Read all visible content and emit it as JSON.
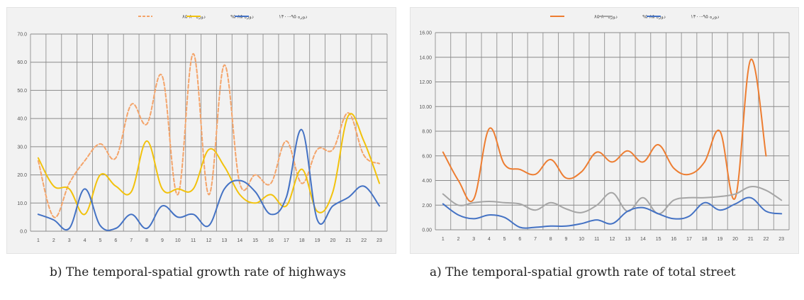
{
  "captions": {
    "b": "b) The temporal-spatial growth rate of highways",
    "a": "a) The temporal-spatial growth rate of total street"
  },
  "chart_data": [
    {
      "type": "line",
      "panel": "b",
      "x": [
        1,
        2,
        3,
        4,
        5,
        6,
        7,
        8,
        9,
        10,
        11,
        12,
        13,
        14,
        15,
        16,
        17,
        18,
        19,
        20,
        21,
        22,
        23
      ],
      "ylim": [
        0,
        70
      ],
      "yticks": [
        "0.0",
        "10.0",
        "20.0",
        "30.0",
        "40.0",
        "50.0",
        "60.0",
        "70.0"
      ],
      "grid": true,
      "legend_position": "top-center",
      "series": [
        {
          "name": "دوره ۸۰-۸۵",
          "color": "#f4a46a",
          "dashed": true,
          "values": [
            25,
            5,
            17,
            25,
            31,
            26,
            45,
            38,
            55,
            13,
            63,
            13,
            59,
            17,
            20,
            17,
            32,
            17,
            29,
            29,
            42,
            27,
            24
          ]
        },
        {
          "name": "دوره ۸۵-۹۵",
          "color": "#f2c20c",
          "dashed": false,
          "values": [
            26,
            16,
            15,
            6,
            20,
            16,
            14,
            32,
            15,
            15,
            15,
            29,
            23,
            13,
            10,
            13,
            9,
            22,
            7,
            14,
            41,
            32,
            17
          ]
        },
        {
          "name": "دوره ۹۵-۱۴۰۰",
          "color": "#4472c4",
          "dashed": false,
          "values": [
            6,
            4,
            1,
            15,
            2,
            1,
            6,
            1,
            9,
            5,
            6,
            2,
            15,
            18,
            14,
            6,
            12,
            36,
            4,
            9,
            12,
            16,
            9
          ]
        }
      ]
    },
    {
      "type": "line",
      "panel": "a",
      "x": [
        1,
        2,
        3,
        4,
        5,
        6,
        7,
        8,
        9,
        10,
        11,
        12,
        13,
        14,
        15,
        16,
        17,
        18,
        19,
        20,
        21,
        22,
        23
      ],
      "ylim": [
        0,
        16
      ],
      "yticks": [
        "0.00",
        "2.00",
        "4.00",
        "6.00",
        "8.00",
        "10.00",
        "12.00",
        "14.00",
        "16.00"
      ],
      "grid": true,
      "legend_position": "top-center",
      "series": [
        {
          "name": "دوره ۸۰-۸۵",
          "color": "#ed7d31",
          "dashed": false,
          "values": [
            6.3,
            4.0,
            2.5,
            8.2,
            5.3,
            4.9,
            4.5,
            5.7,
            4.2,
            4.7,
            6.3,
            5.5,
            6.4,
            5.5,
            6.9,
            5.0,
            4.5,
            5.5,
            8.0,
            2.6,
            13.8,
            6.0,
            null
          ]
        },
        {
          "name": "دوره ۸۵-۹۵",
          "color": "#a5a5a5",
          "dashed": false,
          "values": [
            2.9,
            2.0,
            2.2,
            2.3,
            2.2,
            2.1,
            1.6,
            2.2,
            1.7,
            1.4,
            2.0,
            3.0,
            1.5,
            2.6,
            1.3,
            2.4,
            2.6,
            2.6,
            2.7,
            2.9,
            3.5,
            3.2,
            2.4
          ]
        },
        {
          "name": "دوره ۹۵-۱۴۰۰",
          "color": "#4472c4",
          "dashed": false,
          "values": [
            2.1,
            1.2,
            0.9,
            1.2,
            1.0,
            0.2,
            0.2,
            0.3,
            0.3,
            0.5,
            0.8,
            0.5,
            1.5,
            1.8,
            1.3,
            0.9,
            1.1,
            2.2,
            1.6,
            2.1,
            2.6,
            1.5,
            1.3
          ]
        }
      ]
    }
  ]
}
